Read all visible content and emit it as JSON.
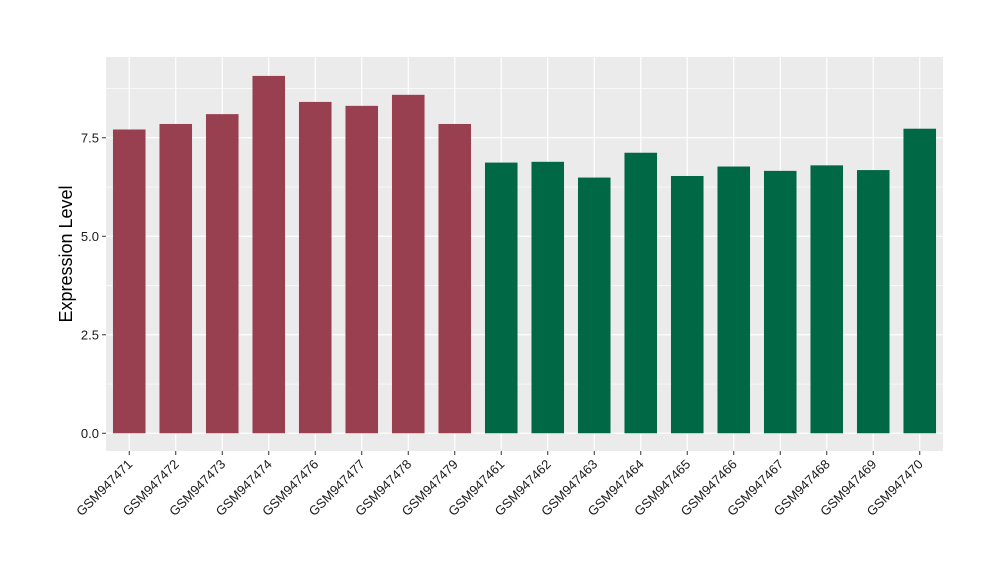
{
  "chart_data": {
    "type": "bar",
    "title": "",
    "xlabel": "",
    "ylabel": "Expression Level",
    "ylim": [
      -0.45,
      9.55
    ],
    "yticks": [
      0.0,
      2.5,
      5.0,
      7.5
    ],
    "ytick_labels": [
      "0.0",
      "2.5",
      "5.0",
      "7.5"
    ],
    "grid": true,
    "legend": "none",
    "categories": [
      "GSM947471",
      "GSM947472",
      "GSM947473",
      "GSM947474",
      "GSM947476",
      "GSM947477",
      "GSM947478",
      "GSM947479",
      "GSM947461",
      "GSM947462",
      "GSM947463",
      "GSM947464",
      "GSM947465",
      "GSM947466",
      "GSM947467",
      "GSM947468",
      "GSM947469",
      "GSM947470"
    ],
    "values": [
      7.71,
      7.85,
      8.1,
      9.07,
      8.41,
      8.31,
      8.59,
      7.85,
      6.87,
      6.89,
      6.49,
      7.12,
      6.53,
      6.77,
      6.66,
      6.8,
      6.68,
      7.73
    ],
    "groups": [
      0,
      0,
      0,
      0,
      0,
      0,
      0,
      0,
      1,
      1,
      1,
      1,
      1,
      1,
      1,
      1,
      1,
      1
    ],
    "group_colors": [
      "#98404f",
      "#006845"
    ],
    "panel_background": "#ebebeb",
    "grid_color": "#ffffff"
  }
}
